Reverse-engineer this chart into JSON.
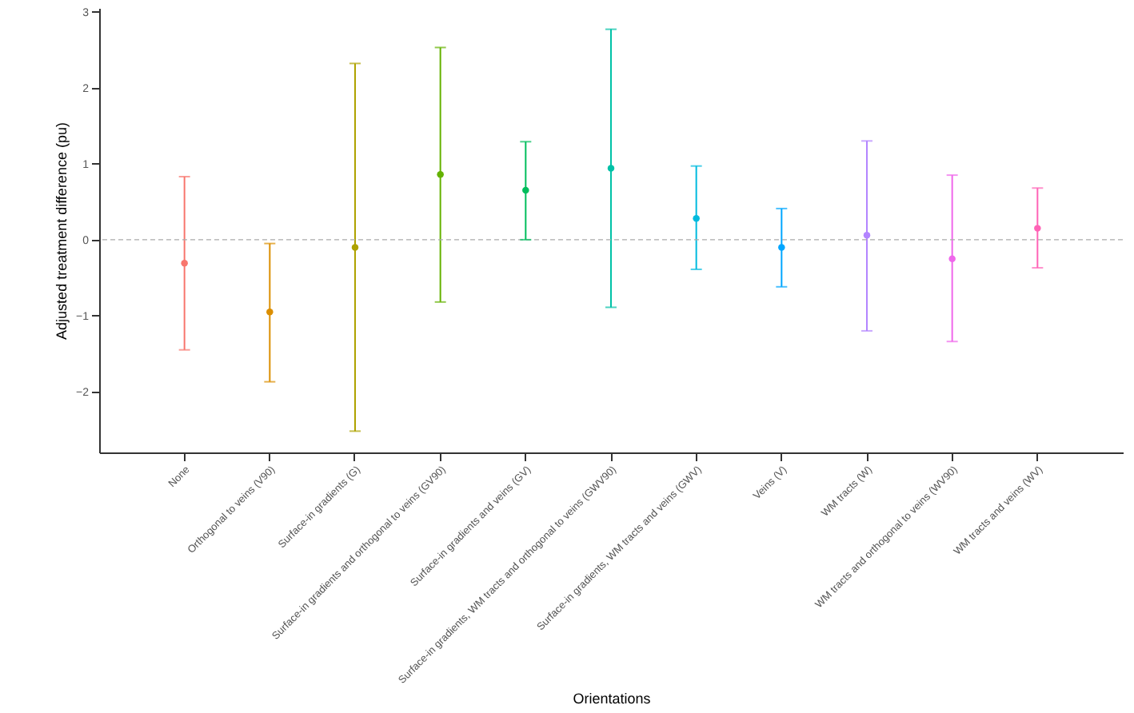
{
  "chart_data": {
    "type": "scatter",
    "xlabel": "Orientations",
    "ylabel": "Adjusted treatment difference (pu)",
    "categories": [
      "None",
      "Orthogonal to veins (V90)",
      "Surface-in gradients (G)",
      "Surface-in gradients and orthogonal to veins (GV90)",
      "Surface-in gradients and veins (GV)",
      "Surface-in gradients, WM tracts and orthogonal to veins (GWV90)",
      "Surface-in gradients, WM tracts and veins (GWV)",
      "Veins (V)",
      "WM tracts (W)",
      "WM tracts and orthogonal to veins (WV90)",
      "WM tracts and veins (WV)"
    ],
    "values": [
      -0.31,
      -0.95,
      -0.1,
      0.86,
      0.65,
      0.94,
      0.28,
      -0.1,
      0.06,
      -0.25,
      0.15
    ],
    "errors": [
      [
        -1.45,
        0.83
      ],
      [
        -1.87,
        -0.05
      ],
      [
        -2.52,
        2.32
      ],
      [
        -0.82,
        2.53
      ],
      [
        0,
        1.29
      ],
      [
        -0.89,
        2.77
      ],
      [
        -0.39,
        0.97
      ],
      [
        -0.62,
        0.41
      ],
      [
        -1.2,
        1.3
      ],
      [
        -1.34,
        0.85
      ],
      [
        -0.37,
        0.68
      ]
    ],
    "colors": [
      "#f8766d",
      "#db8e00",
      "#aea200",
      "#64b200",
      "#00bd5c",
      "#00c1a7",
      "#00bade",
      "#00a6ff",
      "#b385ff",
      "#ef67eb",
      "#ff63b6"
    ],
    "ylim": [
      -2.8,
      3.05
    ],
    "yticks": [
      -2,
      -1,
      0,
      1,
      2,
      3
    ],
    "ref_lines": [
      {
        "axis": "y",
        "value": 0,
        "color": "#aaaaaa",
        "line_style": "dashed"
      }
    ],
    "grid": false,
    "marker": "circle"
  }
}
